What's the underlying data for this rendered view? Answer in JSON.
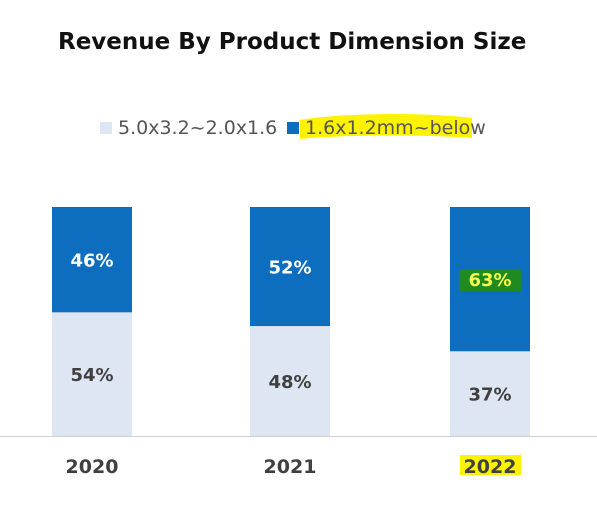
{
  "chart_data": {
    "type": "bar",
    "stacked": true,
    "percent_stacked": true,
    "title": "Revenue By Product Dimension Size",
    "categories": [
      "2020",
      "2021",
      "2022"
    ],
    "series": [
      {
        "name": "5.0x3.2~2.0x1.6",
        "values": [
          54,
          48,
          37
        ],
        "labels": [
          "54%",
          "48%",
          "37%"
        ],
        "color": "#dde6f2",
        "label_color": "#404040"
      },
      {
        "name": "1.6x1.2mm~below",
        "values": [
          46,
          52,
          63
        ],
        "labels": [
          "46%",
          "52%",
          "63%"
        ],
        "color": "#0d6ebf",
        "label_color": "#ffffff"
      }
    ],
    "ylim": [
      0,
      100
    ],
    "grid": false,
    "legend_position": "top-center",
    "highlights": {
      "legend_series_index": 1,
      "legend_highlight_color": "#fff200",
      "category_index": 2,
      "category_highlight_color": "#fff200",
      "label": {
        "series_index": 1,
        "category_index": 2,
        "background": "#1f8a1f",
        "text_color": "#f5ff4d"
      }
    },
    "axis_color": "#cfcfcf"
  }
}
